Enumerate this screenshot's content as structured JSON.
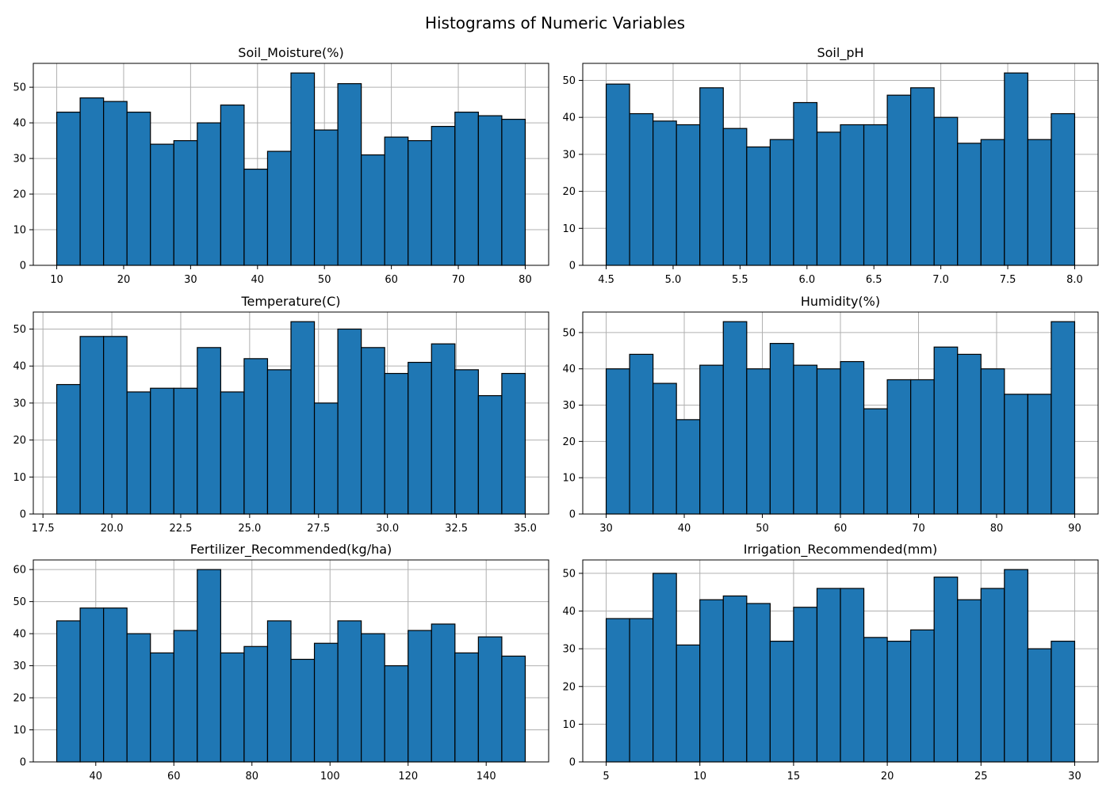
{
  "figure": {
    "title": "Histograms of Numeric Variables"
  },
  "chart_data": [
    {
      "type": "bar",
      "title": "Soil_Moisture(%)",
      "xlim": [
        6.5,
        83.5
      ],
      "ylim": [
        0,
        56.7
      ],
      "bins": 20,
      "bin_range": [
        10,
        80
      ],
      "values": [
        43,
        47,
        46,
        43,
        34,
        35,
        40,
        45,
        27,
        32,
        54,
        38,
        51,
        31,
        36,
        35,
        39,
        43,
        42,
        41
      ],
      "xticks": [
        10,
        20,
        30,
        40,
        50,
        60,
        70,
        80
      ],
      "xtick_labels": [
        "10",
        "20",
        "30",
        "40",
        "50",
        "60",
        "70",
        "80"
      ],
      "yticks": [
        0,
        10,
        20,
        30,
        40,
        50
      ],
      "ytick_labels": [
        "0",
        "10",
        "20",
        "30",
        "40",
        "50"
      ],
      "grid": true
    },
    {
      "type": "bar",
      "title": "Soil_pH",
      "xlim": [
        4.325,
        8.175
      ],
      "ylim": [
        0,
        54.6
      ],
      "bins": 20,
      "bin_range": [
        4.5,
        8.0
      ],
      "values": [
        49,
        41,
        39,
        38,
        48,
        37,
        32,
        34,
        44,
        36,
        38,
        38,
        46,
        48,
        40,
        33,
        34,
        52,
        34,
        41
      ],
      "xticks": [
        4.5,
        5.0,
        5.5,
        6.0,
        6.5,
        7.0,
        7.5,
        8.0
      ],
      "xtick_labels": [
        "4.5",
        "5.0",
        "5.5",
        "6.0",
        "6.5",
        "7.0",
        "7.5",
        "8.0"
      ],
      "yticks": [
        0,
        10,
        20,
        30,
        40,
        50
      ],
      "ytick_labels": [
        "0",
        "10",
        "20",
        "30",
        "40",
        "50"
      ],
      "grid": true
    },
    {
      "type": "bar",
      "title": "Temperature(C)",
      "xlim": [
        17.15,
        35.85
      ],
      "ylim": [
        0,
        54.6
      ],
      "bins": 20,
      "bin_range": [
        18,
        35
      ],
      "values": [
        35,
        48,
        48,
        33,
        34,
        34,
        45,
        33,
        42,
        39,
        52,
        30,
        50,
        45,
        38,
        41,
        46,
        39,
        32,
        38
      ],
      "xticks": [
        17.5,
        20.0,
        22.5,
        25.0,
        27.5,
        30.0,
        32.5,
        35.0
      ],
      "xtick_labels": [
        "17.5",
        "20.0",
        "22.5",
        "25.0",
        "27.5",
        "30.0",
        "32.5",
        "35.0"
      ],
      "yticks": [
        0,
        10,
        20,
        30,
        40,
        50
      ],
      "ytick_labels": [
        "0",
        "10",
        "20",
        "30",
        "40",
        "50"
      ],
      "grid": true
    },
    {
      "type": "bar",
      "title": "Humidity(%)",
      "xlim": [
        27,
        93
      ],
      "ylim": [
        0,
        55.65
      ],
      "bins": 20,
      "bin_range": [
        30,
        90
      ],
      "values": [
        40,
        44,
        36,
        26,
        41,
        53,
        40,
        47,
        41,
        40,
        42,
        29,
        37,
        37,
        46,
        44,
        40,
        33,
        33,
        53
      ],
      "xticks": [
        30,
        40,
        50,
        60,
        70,
        80,
        90
      ],
      "xtick_labels": [
        "30",
        "40",
        "50",
        "60",
        "70",
        "80",
        "90"
      ],
      "yticks": [
        0,
        10,
        20,
        30,
        40,
        50
      ],
      "ytick_labels": [
        "0",
        "10",
        "20",
        "30",
        "40",
        "50"
      ],
      "grid": true
    },
    {
      "type": "bar",
      "title": "Fertilizer_Recommended(kg/ha)",
      "xlim": [
        24,
        156
      ],
      "ylim": [
        0,
        63
      ],
      "bins": 20,
      "bin_range": [
        30,
        150
      ],
      "values": [
        44,
        48,
        48,
        40,
        34,
        41,
        60,
        34,
        36,
        44,
        32,
        37,
        44,
        40,
        30,
        41,
        43,
        34,
        39,
        33
      ],
      "xticks": [
        40,
        60,
        80,
        100,
        120,
        140
      ],
      "xtick_labels": [
        "40",
        "60",
        "80",
        "100",
        "120",
        "140"
      ],
      "yticks": [
        0,
        10,
        20,
        30,
        40,
        50,
        60
      ],
      "ytick_labels": [
        "0",
        "10",
        "20",
        "30",
        "40",
        "50",
        "60"
      ],
      "grid": true
    },
    {
      "type": "bar",
      "title": "Irrigation_Recommended(mm)",
      "xlim": [
        3.75,
        31.25
      ],
      "ylim": [
        0,
        53.55
      ],
      "bins": 20,
      "bin_range": [
        5,
        30
      ],
      "values": [
        38,
        38,
        50,
        31,
        43,
        44,
        42,
        32,
        41,
        46,
        46,
        33,
        32,
        35,
        49,
        43,
        46,
        51,
        30,
        32
      ],
      "xticks": [
        5,
        10,
        15,
        20,
        25,
        30
      ],
      "xtick_labels": [
        "5",
        "10",
        "15",
        "20",
        "25",
        "30"
      ],
      "yticks": [
        0,
        10,
        20,
        30,
        40,
        50
      ],
      "ytick_labels": [
        "0",
        "10",
        "20",
        "30",
        "40",
        "50"
      ],
      "grid": true
    }
  ]
}
